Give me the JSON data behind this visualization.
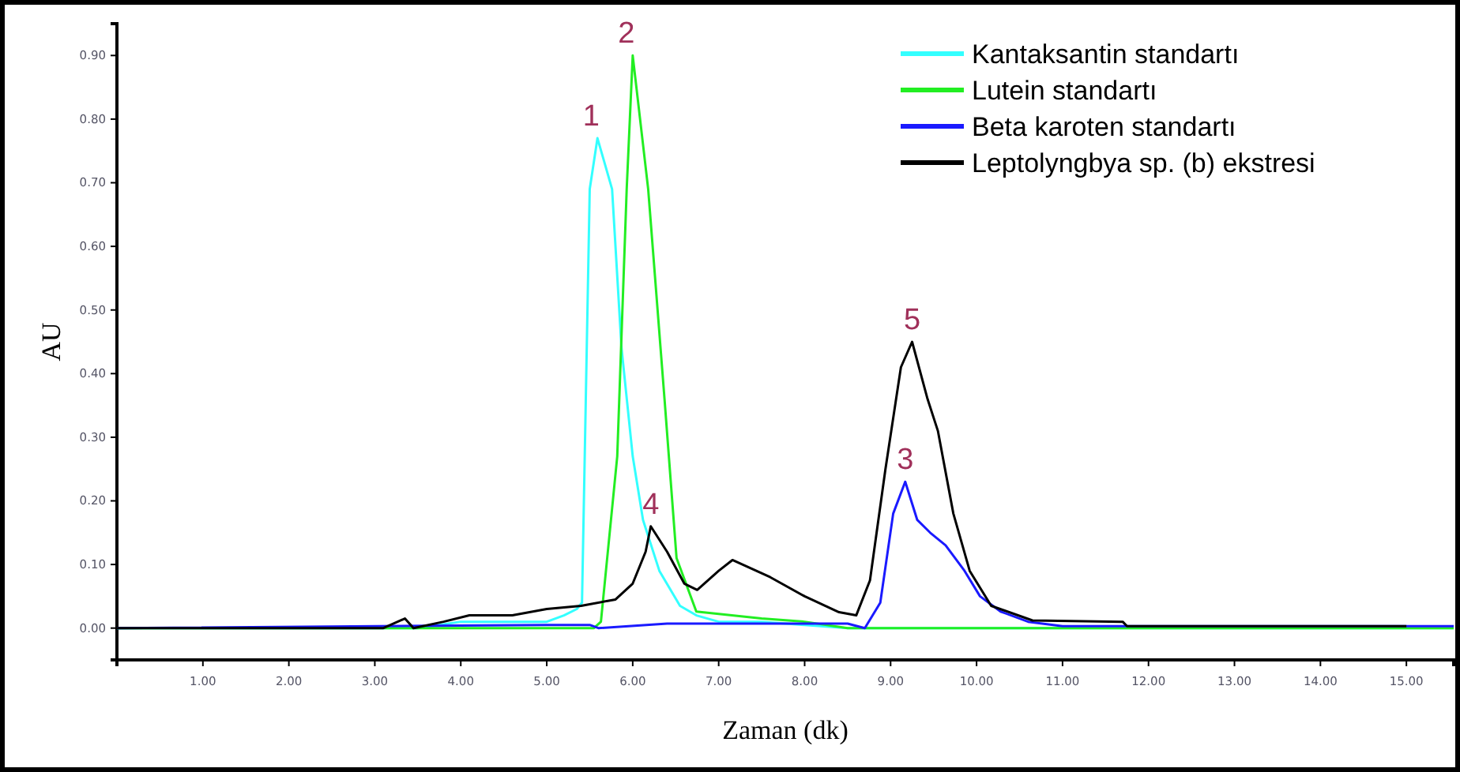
{
  "chart_data": {
    "type": "line",
    "xlabel": "Zaman (dk)",
    "ylabel": "AU",
    "xlim": [
      0,
      15.55
    ],
    "ylim": [
      -0.05,
      0.95
    ],
    "xticks": [
      {
        "value": 1,
        "label": "1.00"
      },
      {
        "value": 2,
        "label": "2.00"
      },
      {
        "value": 3,
        "label": "3.00"
      },
      {
        "value": 4,
        "label": "4.00"
      },
      {
        "value": 5,
        "label": "5.00"
      },
      {
        "value": 6,
        "label": "6.00"
      },
      {
        "value": 7,
        "label": "7.00"
      },
      {
        "value": 8,
        "label": "8.00"
      },
      {
        "value": 9,
        "label": "9.00"
      },
      {
        "value": 10,
        "label": "10.00"
      },
      {
        "value": 11,
        "label": "11.00"
      },
      {
        "value": 12,
        "label": "12.00"
      },
      {
        "value": 13,
        "label": "13.00"
      },
      {
        "value": 14,
        "label": "14.00"
      },
      {
        "value": 15,
        "label": "15.00"
      }
    ],
    "yticks": [
      {
        "value": 0,
        "label": "0.00"
      },
      {
        "value": 0.1,
        "label": "0.10"
      },
      {
        "value": 0.2,
        "label": "0.20"
      },
      {
        "value": 0.3,
        "label": "0.30"
      },
      {
        "value": 0.4,
        "label": "0.40"
      },
      {
        "value": 0.5,
        "label": "0.50"
      },
      {
        "value": 0.6,
        "label": "0.60"
      },
      {
        "value": 0.7,
        "label": "0.70"
      },
      {
        "value": 0.8,
        "label": "0.80"
      },
      {
        "value": 0.9,
        "label": "0.90"
      }
    ],
    "grid": false,
    "legend": "top right",
    "marker": "none",
    "line_style": "solid",
    "series": [
      {
        "name": "Kantaksantin standartı",
        "color": "#33ffff",
        "x": [
          0,
          3.5,
          4.0,
          5.0,
          5.2,
          5.35,
          5.41,
          5.5,
          5.59,
          5.76,
          5.87,
          6.0,
          6.12,
          6.31,
          6.55,
          6.74,
          7.0,
          7.5,
          8.0,
          8.5,
          15.55
        ],
        "values": [
          0,
          0,
          0.01,
          0.01,
          0.02,
          0.03,
          0.04,
          0.69,
          0.77,
          0.69,
          0.44,
          0.27,
          0.17,
          0.09,
          0.035,
          0.02,
          0.01,
          0.01,
          0.005,
          0,
          0
        ]
      },
      {
        "name": "Lutein standartı",
        "color": "#22ee22",
        "x": [
          0,
          5.55,
          5.63,
          5.82,
          5.93,
          6.0,
          6.18,
          6.37,
          6.51,
          6.74,
          7.5,
          8.0,
          8.5,
          15.55
        ],
        "values": [
          0,
          0,
          0.01,
          0.27,
          0.69,
          0.9,
          0.69,
          0.36,
          0.11,
          0.026,
          0.015,
          0.01,
          0,
          0
        ]
      },
      {
        "name": "Beta karoten standartı",
        "color": "#1a1aff",
        "x": [
          0,
          5.0,
          5.5,
          5.6,
          6.4,
          8.5,
          8.7,
          8.88,
          9.03,
          9.17,
          9.31,
          9.46,
          9.64,
          9.86,
          10.04,
          10.28,
          10.6,
          11.0,
          15.55
        ],
        "values": [
          0,
          0.005,
          0.005,
          0,
          0.007,
          0.007,
          0,
          0.04,
          0.18,
          0.23,
          0.17,
          0.15,
          0.13,
          0.09,
          0.05,
          0.026,
          0.01,
          0.003,
          0.003
        ]
      },
      {
        "name": "Leptolyngbya sp. (b) ekstresi",
        "color": "#000000",
        "x": [
          0,
          3.1,
          3.35,
          3.45,
          3.8,
          4.1,
          4.6,
          5.0,
          5.4,
          5.8,
          6.0,
          6.15,
          6.21,
          6.4,
          6.6,
          6.75,
          7.0,
          7.16,
          7.6,
          8.0,
          8.4,
          8.6,
          8.76,
          8.94,
          9.12,
          9.25,
          9.43,
          9.55,
          9.73,
          9.92,
          10.17,
          10.65,
          11.7,
          11.75,
          15.0
        ],
        "values": [
          0,
          0,
          0.015,
          0,
          0.01,
          0.02,
          0.02,
          0.03,
          0.035,
          0.045,
          0.07,
          0.12,
          0.16,
          0.12,
          0.07,
          0.06,
          0.09,
          0.107,
          0.08,
          0.05,
          0.025,
          0.02,
          0.075,
          0.25,
          0.41,
          0.45,
          0.36,
          0.31,
          0.18,
          0.09,
          0.035,
          0.012,
          0.01,
          0.003,
          0.003
        ]
      }
    ],
    "annotations": [
      {
        "text": "1",
        "x": 5.59,
        "y": 0.77
      },
      {
        "text": "2",
        "x": 6.0,
        "y": 0.9
      },
      {
        "text": "3",
        "x": 9.17,
        "y": 0.23
      },
      {
        "text": "4",
        "x": 6.21,
        "y": 0.16
      },
      {
        "text": "5",
        "x": 9.25,
        "y": 0.45
      }
    ]
  }
}
